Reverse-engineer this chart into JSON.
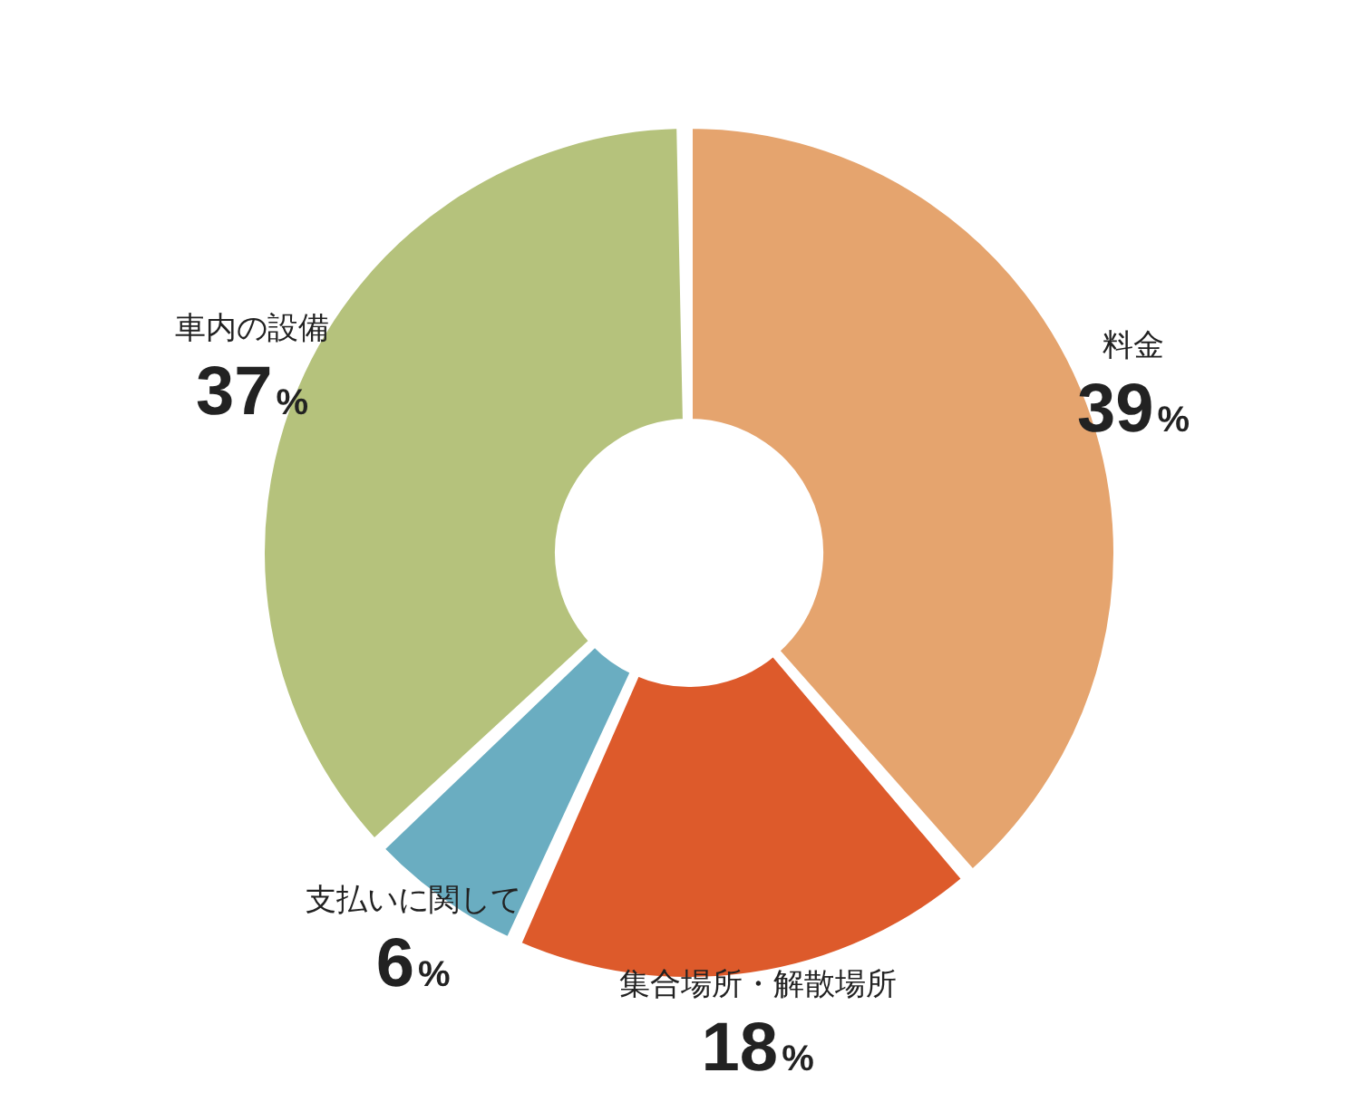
{
  "chart_data": {
    "type": "donut",
    "categories": [
      "料金",
      "集合場所・解散場所",
      "支払いに関して",
      "車内の設備"
    ],
    "values": [
      39,
      18,
      6,
      37
    ],
    "colors": [
      "#e5a46e",
      "#dd5a2b",
      "#6aadc1",
      "#b5c27c"
    ],
    "value_labels": [
      "39%",
      "18%",
      "6%",
      "37%"
    ]
  }
}
